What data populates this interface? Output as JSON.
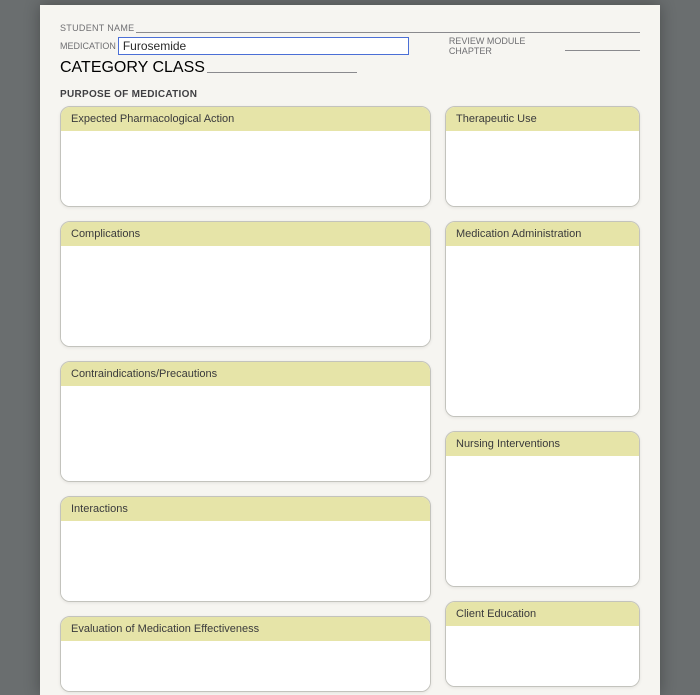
{
  "header": {
    "student_name_label": "STUDENT NAME",
    "medication_label": "MEDICATION",
    "medication_value": "Furosemide",
    "review_label": "REVIEW MODULE CHAPTER",
    "category_label": "CATEGORY CLASS"
  },
  "section_title": "PURPOSE OF MEDICATION",
  "cards": {
    "expected_action": "Expected Pharmacological Action",
    "therapeutic_use": "Therapeutic Use",
    "complications": "Complications",
    "contraindications": "Contraindications/Precautions",
    "interactions": "Interactions",
    "evaluation": "Evaluation of Medication Effectiveness",
    "medication_admin": "Medication Administration",
    "nursing_interventions": "Nursing Interventions",
    "client_education": "Client Education"
  },
  "colors": {
    "page_bg": "#f6f5f1",
    "outer_bg": "#6a6e6f",
    "card_header_bg": "#e6e4a8",
    "card_border": "#c3c3bd",
    "label_text": "#6f6f72",
    "input_border": "#4b6fd6"
  }
}
